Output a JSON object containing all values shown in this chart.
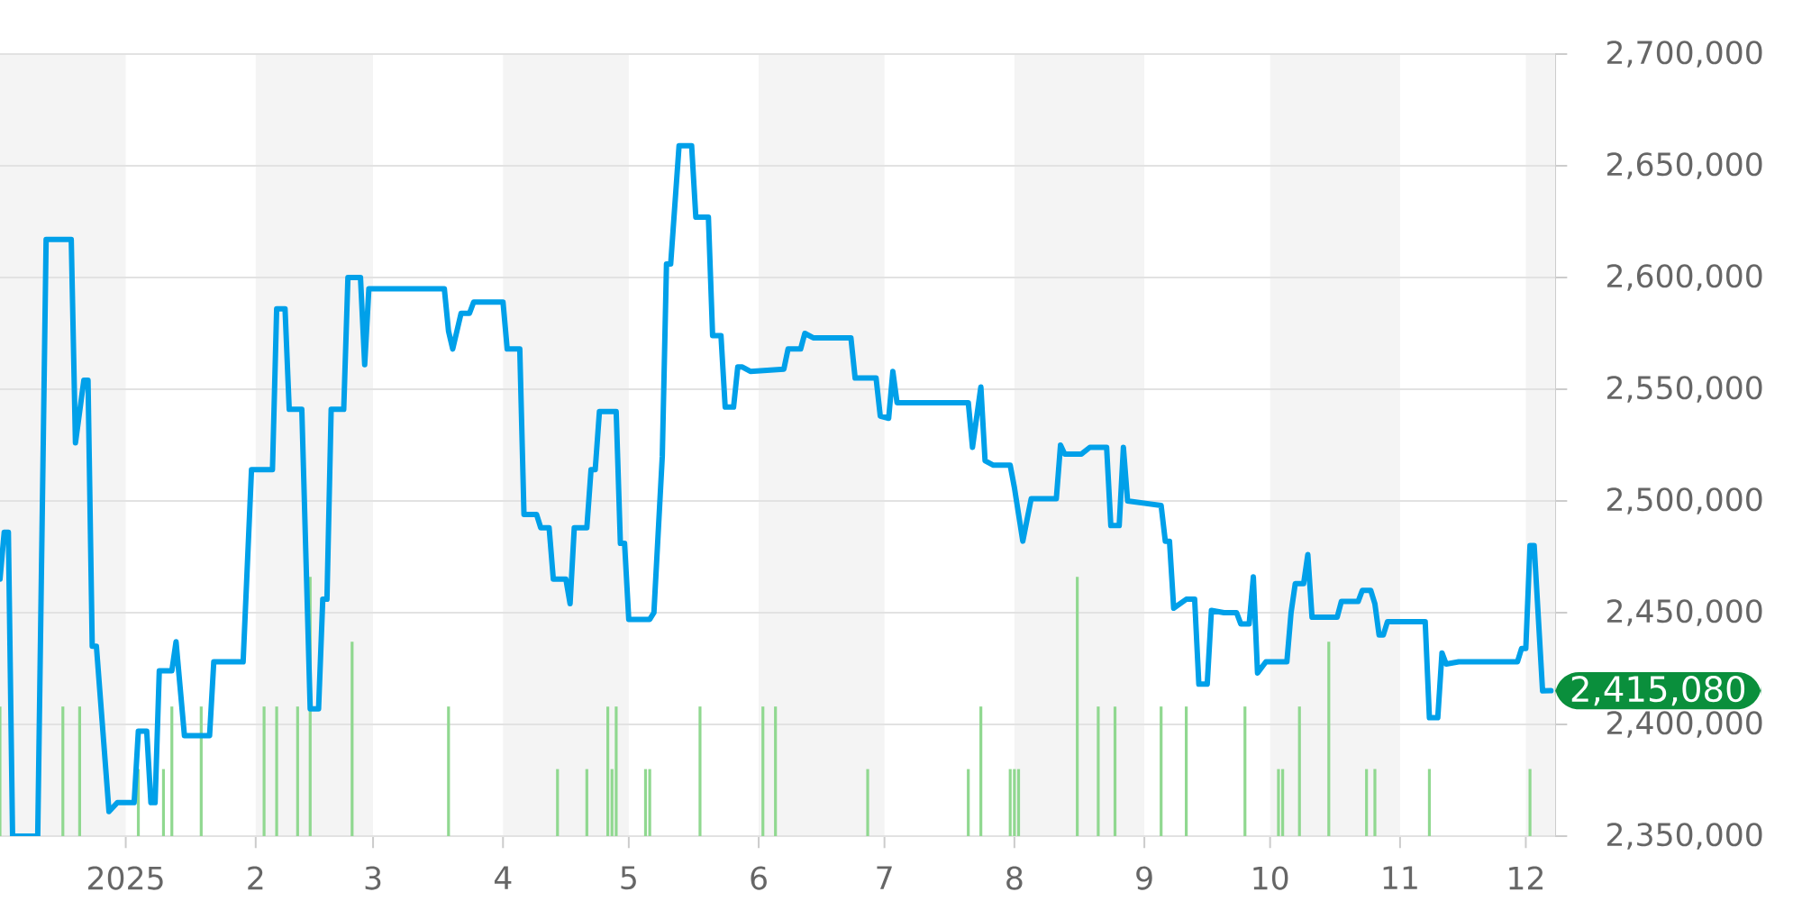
{
  "chart_data": {
    "type": "line",
    "xlim": [
      "2024-12-02",
      "2025-12-08"
    ],
    "xticks": [
      {
        "value": "2025-01-01",
        "label": "2025"
      },
      {
        "value": "2025-02-01",
        "label": "2"
      },
      {
        "value": "2025-03-01",
        "label": "3"
      },
      {
        "value": "2025-04-01",
        "label": "4"
      },
      {
        "value": "2025-05-01",
        "label": "5"
      },
      {
        "value": "2025-06-01",
        "label": "6"
      },
      {
        "value": "2025-07-01",
        "label": "7"
      },
      {
        "value": "2025-08-01",
        "label": "8"
      },
      {
        "value": "2025-09-01",
        "label": "9"
      },
      {
        "value": "2025-10-01",
        "label": "10"
      },
      {
        "value": "2025-11-01",
        "label": "11"
      },
      {
        "value": "2025-12-01",
        "label": "12"
      }
    ],
    "ylim": [
      2350000,
      2700000
    ],
    "yticks": [
      {
        "value": 2350000,
        "label": "2,350,000"
      },
      {
        "value": 2400000,
        "label": "2,400,000"
      },
      {
        "value": 2450000,
        "label": "2,450,000"
      },
      {
        "value": 2500000,
        "label": "2,500,000"
      },
      {
        "value": 2550000,
        "label": "2,550,000"
      },
      {
        "value": 2600000,
        "label": "2,600,000"
      },
      {
        "value": 2650000,
        "label": "2,650,000"
      },
      {
        "value": 2700000,
        "label": "2,700,000"
      }
    ],
    "grid": "y",
    "bands": [
      {
        "axis": "x",
        "from": "2024-12-02",
        "to": "2025-01-01",
        "color": "#f4f4f4"
      },
      {
        "axis": "x",
        "from": "2025-02-01",
        "to": "2025-03-01",
        "color": "#f4f4f4"
      },
      {
        "axis": "x",
        "from": "2025-04-01",
        "to": "2025-05-01",
        "color": "#f4f4f4"
      },
      {
        "axis": "x",
        "from": "2025-06-01",
        "to": "2025-07-01",
        "color": "#f4f4f4"
      },
      {
        "axis": "x",
        "from": "2025-08-01",
        "to": "2025-09-01",
        "color": "#f4f4f4"
      },
      {
        "axis": "x",
        "from": "2025-10-01",
        "to": "2025-11-01",
        "color": "#f4f4f4"
      },
      {
        "axis": "x",
        "from": "2025-12-01",
        "to": "2025-12-08",
        "color": "#f4f4f4"
      }
    ],
    "series": [
      {
        "color": "#00a0e9",
        "x": [
          "2024-12-02",
          "2024-12-03",
          "2024-12-04",
          "2024-12-05",
          "2024-12-11",
          "2024-12-13",
          "2024-12-19",
          "2024-12-20",
          "2024-12-22",
          "2024-12-23",
          "2024-12-24",
          "2024-12-25",
          "2024-12-28",
          "2024-12-30",
          "2025-01-03",
          "2025-01-04",
          "2025-01-06",
          "2025-01-07",
          "2025-01-08",
          "2025-01-09",
          "2025-01-12",
          "2025-01-13",
          "2025-01-15",
          "2025-01-21",
          "2025-01-22",
          "2025-01-29",
          "2025-01-31",
          "2025-02-05",
          "2025-02-06",
          "2025-02-08",
          "2025-02-09",
          "2025-02-12",
          "2025-02-14",
          "2025-02-16",
          "2025-02-17",
          "2025-02-18",
          "2025-02-19",
          "2025-02-22",
          "2025-02-23",
          "2025-02-26",
          "2025-02-27",
          "2025-02-28",
          "2025-03-18",
          "2025-03-19",
          "2025-03-20",
          "2025-03-22",
          "2025-03-24",
          "2025-03-25",
          "2025-04-01",
          "2025-04-02",
          "2025-04-05",
          "2025-04-06",
          "2025-04-09",
          "2025-04-10",
          "2025-04-12",
          "2025-04-13",
          "2025-04-16",
          "2025-04-17",
          "2025-04-18",
          "2025-04-21",
          "2025-04-22",
          "2025-04-23",
          "2025-04-24",
          "2025-04-28",
          "2025-04-29",
          "2025-04-30",
          "2025-05-01",
          "2025-05-06",
          "2025-05-07",
          "2025-05-09",
          "2025-05-10",
          "2025-05-11",
          "2025-05-13",
          "2025-05-16",
          "2025-05-17",
          "2025-05-20",
          "2025-05-21",
          "2025-05-23",
          "2025-05-24",
          "2025-05-26",
          "2025-05-27",
          "2025-05-28",
          "2025-05-30",
          "2025-06-07",
          "2025-06-08",
          "2025-06-11",
          "2025-06-12",
          "2025-06-14",
          "2025-06-23",
          "2025-06-24",
          "2025-06-29",
          "2025-06-30",
          "2025-07-02",
          "2025-07-03",
          "2025-07-04",
          "2025-07-21",
          "2025-07-22",
          "2025-07-24",
          "2025-07-25",
          "2025-07-27",
          "2025-07-31",
          "2025-08-01",
          "2025-08-03",
          "2025-08-05",
          "2025-08-11",
          "2025-08-12",
          "2025-08-13",
          "2025-08-17",
          "2025-08-19",
          "2025-08-23",
          "2025-08-24",
          "2025-08-26",
          "2025-08-27",
          "2025-08-28",
          "2025-09-05",
          "2025-09-06",
          "2025-09-07",
          "2025-09-08",
          "2025-09-11",
          "2025-09-13",
          "2025-09-14",
          "2025-09-16",
          "2025-09-17",
          "2025-09-20",
          "2025-09-23",
          "2025-09-24",
          "2025-09-26",
          "2025-09-27",
          "2025-09-28",
          "2025-09-30",
          "2025-10-05",
          "2025-10-06",
          "2025-10-07",
          "2025-10-09",
          "2025-10-10",
          "2025-10-11",
          "2025-10-17",
          "2025-10-18",
          "2025-10-22",
          "2025-10-23",
          "2025-10-25",
          "2025-10-26",
          "2025-10-27",
          "2025-10-28",
          "2025-10-29",
          "2025-11-07",
          "2025-11-08",
          "2025-11-10",
          "2025-11-11",
          "2025-11-12",
          "2025-11-15",
          "2025-11-29",
          "2025-11-30",
          "2025-12-01",
          "2025-12-02",
          "2025-12-03",
          "2025-12-05",
          "2025-12-07"
        ],
        "values": [
          2465000,
          2486000,
          2486000,
          2350000,
          2350000,
          2617000,
          2617000,
          2526000,
          2554000,
          2554000,
          2435000,
          2435000,
          2361000,
          2365000,
          2365000,
          2397000,
          2397000,
          2365000,
          2365000,
          2424000,
          2424000,
          2437000,
          2395000,
          2395000,
          2428000,
          2428000,
          2514000,
          2514000,
          2586000,
          2586000,
          2541000,
          2541000,
          2407000,
          2407000,
          2456000,
          2456000,
          2541000,
          2541000,
          2600000,
          2600000,
          2561000,
          2595000,
          2595000,
          2576000,
          2568000,
          2584000,
          2584000,
          2589000,
          2589000,
          2568000,
          2568000,
          2494000,
          2494000,
          2488000,
          2488000,
          2465000,
          2465000,
          2454000,
          2488000,
          2488000,
          2514000,
          2514000,
          2540000,
          2540000,
          2481000,
          2481000,
          2447000,
          2447000,
          2450000,
          2520000,
          2606000,
          2606000,
          2659000,
          2659000,
          2627000,
          2627000,
          2574000,
          2574000,
          2542000,
          2542000,
          2560000,
          2560000,
          2558000,
          2559000,
          2568000,
          2568000,
          2575000,
          2573000,
          2573000,
          2555000,
          2555000,
          2538000,
          2537000,
          2558000,
          2544000,
          2544000,
          2524000,
          2551000,
          2518000,
          2516000,
          2516000,
          2506000,
          2482000,
          2501000,
          2501000,
          2525000,
          2521000,
          2521000,
          2524000,
          2524000,
          2489000,
          2489000,
          2524000,
          2500000,
          2498000,
          2482000,
          2482000,
          2452000,
          2456000,
          2456000,
          2418000,
          2418000,
          2451000,
          2450000,
          2450000,
          2445000,
          2445000,
          2466000,
          2423000,
          2428000,
          2428000,
          2450000,
          2463000,
          2463000,
          2476000,
          2448000,
          2448000,
          2455000,
          2455000,
          2460000,
          2460000,
          2454000,
          2440000,
          2440000,
          2446000,
          2446000,
          2403000,
          2403000,
          2432000,
          2427000,
          2428000,
          2428000,
          2434000,
          2434000,
          2480000,
          2480000,
          2415000,
          2415080
        ],
        "value_labels": [
          null,
          null,
          null,
          null,
          null,
          null,
          null,
          null,
          null,
          null,
          null,
          null,
          null,
          null,
          null,
          null,
          null,
          null,
          null,
          null,
          null,
          null,
          null,
          null,
          null,
          null,
          null,
          null,
          null,
          null,
          null,
          null,
          null,
          null,
          null,
          null,
          null,
          null,
          null,
          null,
          null,
          null,
          null,
          null,
          null,
          null,
          null,
          null,
          null,
          null,
          null,
          null,
          null,
          null,
          null,
          null,
          null,
          null,
          null,
          null,
          null,
          null,
          null,
          null,
          null,
          null,
          null,
          null,
          null,
          null,
          null,
          null,
          null,
          null,
          null,
          null,
          null,
          null,
          null,
          null,
          null,
          null,
          null,
          null,
          null,
          null,
          null,
          null,
          null,
          null,
          null,
          null,
          null,
          null,
          null,
          null,
          null,
          null,
          null,
          null,
          null,
          null,
          null,
          null,
          null,
          null,
          null,
          null,
          null,
          null,
          null,
          null,
          null,
          null,
          null,
          null,
          null,
          null,
          null,
          null,
          null,
          null,
          null,
          null,
          null,
          null,
          null,
          null,
          null,
          null,
          null,
          null,
          null,
          null,
          null,
          null,
          null,
          null,
          null,
          null,
          null,
          null,
          null,
          null,
          null,
          null,
          null,
          null,
          null,
          null,
          null,
          null,
          null,
          null,
          null,
          null,
          null,
          "2,415,080"
        ]
      },
      {
        "type": "bar",
        "color": "#90d890",
        "x": [
          "2024-12-02",
          "2024-12-17",
          "2024-12-21",
          "2025-01-04",
          "2025-01-10",
          "2025-01-12",
          "2025-01-19",
          "2025-02-03",
          "2025-02-06",
          "2025-02-11",
          "2025-02-14",
          "2025-02-24",
          "2025-03-19",
          "2025-04-14",
          "2025-04-21",
          "2025-04-26",
          "2025-04-27",
          "2025-04-28",
          "2025-05-05",
          "2025-05-06",
          "2025-05-18",
          "2025-06-02",
          "2025-06-05",
          "2025-06-27",
          "2025-07-21",
          "2025-07-24",
          "2025-07-31",
          "2025-08-01",
          "2025-08-02",
          "2025-08-16",
          "2025-08-21",
          "2025-08-25",
          "2025-09-05",
          "2025-09-11",
          "2025-09-25",
          "2025-10-03",
          "2025-10-04",
          "2025-10-08",
          "2025-10-15",
          "2025-10-24",
          "2025-10-26",
          "2025-11-08",
          "2025-12-02"
        ],
        "values": [
          2408000,
          2408000,
          2408000,
          2380000,
          2380000,
          2408000,
          2408000,
          2408000,
          2408000,
          2408000,
          2466000,
          2437000,
          2408000,
          2380000,
          2380000,
          2408000,
          2380000,
          2408000,
          2380000,
          2380000,
          2408000,
          2408000,
          2408000,
          2380000,
          2380000,
          2408000,
          2380000,
          2380000,
          2380000,
          2466000,
          2408000,
          2408000,
          2408000,
          2408000,
          2408000,
          2380000,
          2380000,
          2408000,
          2437000,
          2380000,
          2380000,
          2380000,
          2380000
        ]
      }
    ]
  }
}
